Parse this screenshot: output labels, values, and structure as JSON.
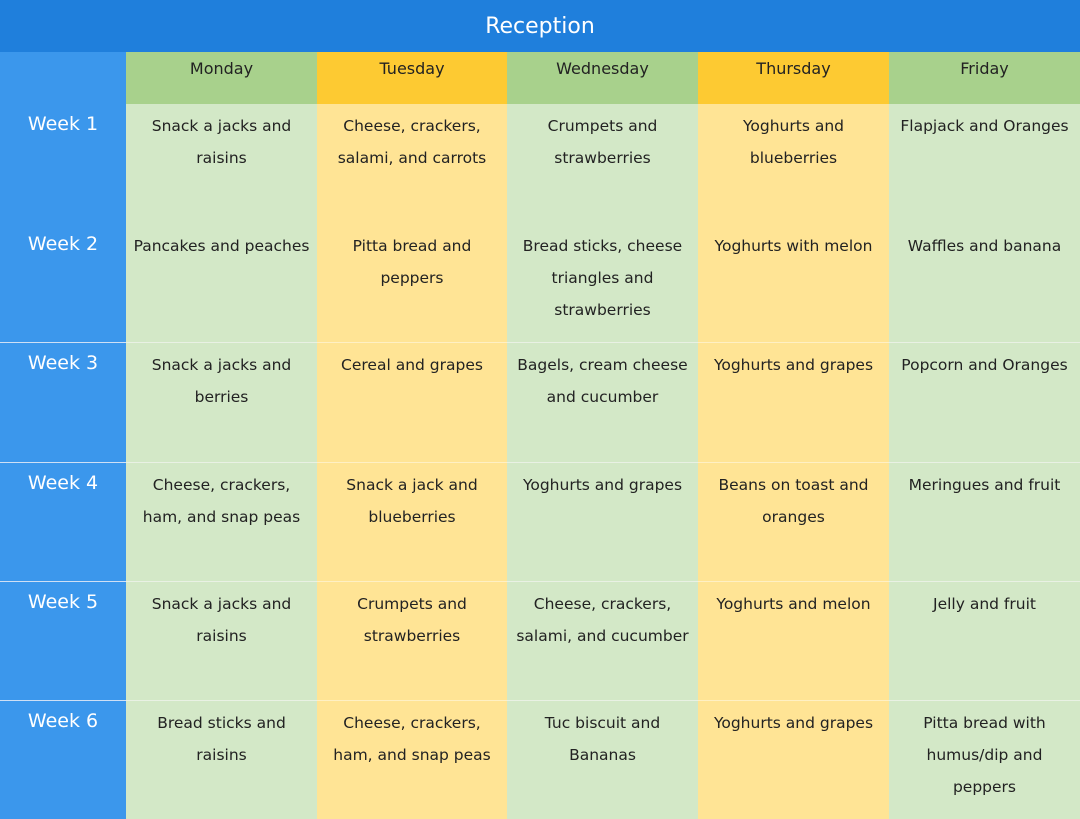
{
  "title": "Reception",
  "days": [
    "Monday",
    "Tuesday",
    "Wednesday",
    "Thursday",
    "Friday"
  ],
  "weeks": [
    {
      "label": "Week 1",
      "items": [
        "Snack a jacks and raisins",
        "Cheese, crackers, salami, and carrots",
        "Crumpets and strawberries",
        "Yoghurts and blueberries",
        "Flapjack and Oranges"
      ]
    },
    {
      "label": "Week 2",
      "items": [
        "Pancakes and peaches",
        "Pitta bread and peppers",
        "Bread sticks, cheese triangles and strawberries",
        "Yoghurts with melon",
        "Waffles and banana"
      ]
    },
    {
      "label": "Week 3",
      "items": [
        "Snack a jacks and berries",
        "Cereal and grapes",
        "Bagels, cream cheese and cucumber",
        "Yoghurts and grapes",
        "Popcorn and Oranges"
      ]
    },
    {
      "label": "Week 4",
      "items": [
        "Cheese, crackers, ham, and snap peas",
        "Snack a jack and blueberries",
        "Yoghurts and grapes",
        "Beans on toast and oranges",
        "Meringues and fruit"
      ]
    },
    {
      "label": "Week 5",
      "items": [
        "Snack a jacks and raisins",
        "Crumpets and strawberries",
        "Cheese, crackers, salami, and cucumber",
        "Yoghurts and melon",
        "Jelly and fruit"
      ]
    },
    {
      "label": "Week 6",
      "items": [
        "Bread sticks and raisins",
        "Cheese, crackers, ham, and snap peas",
        "Tuc biscuit and Bananas",
        "Yoghurts and grapes",
        "Pitta bread with humus/dip and peppers"
      ]
    }
  ],
  "colors": {
    "title_bar": "#1f7fdc",
    "week_column": "#3b97ec",
    "header_green": "#a8d18c",
    "header_yellow": "#fdca32",
    "cell_green": "#d3e8c7",
    "cell_yellow": "#ffe495"
  }
}
